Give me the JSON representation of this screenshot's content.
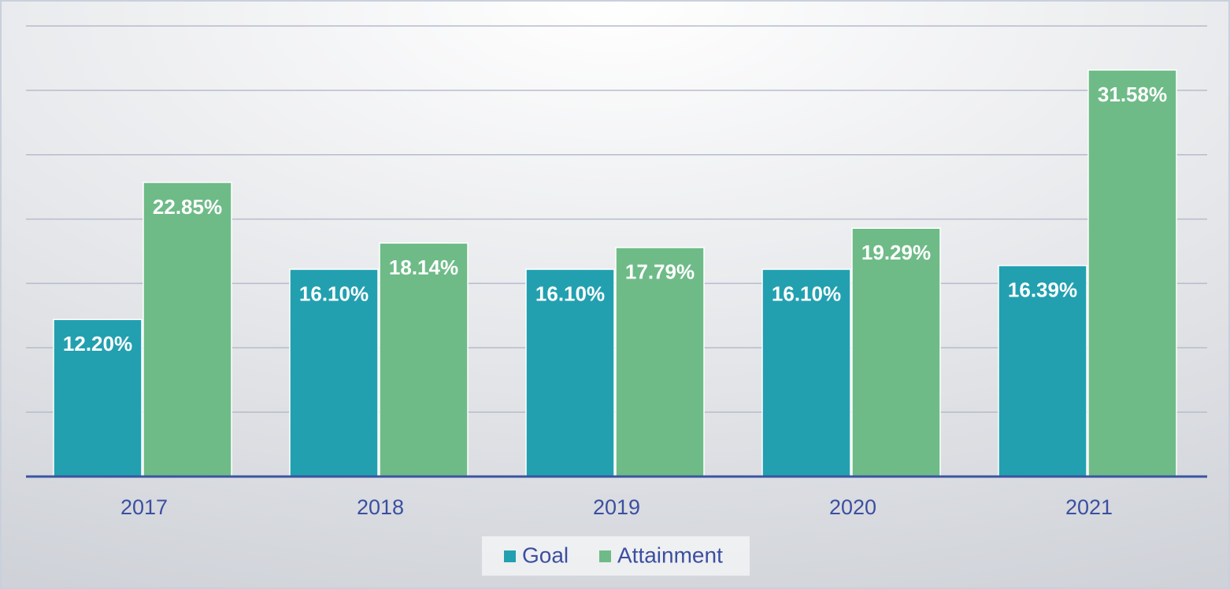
{
  "chart_data": {
    "type": "bar",
    "categories": [
      "2017",
      "2018",
      "2019",
      "2020",
      "2021"
    ],
    "series": [
      {
        "name": "Goal",
        "color": "#22a0b0",
        "values": [
          12.2,
          16.1,
          16.1,
          16.1,
          16.39
        ],
        "value_labels": [
          "12.20%",
          "16.10%",
          "16.10%",
          "16.10%",
          "16.39%"
        ]
      },
      {
        "name": "Attainment",
        "color": "#6ebb87",
        "values": [
          22.85,
          18.14,
          17.79,
          19.29,
          31.58
        ],
        "value_labels": [
          "22.85%",
          "18.14%",
          "17.79%",
          "19.29%",
          "31.58%"
        ]
      }
    ],
    "ylim": [
      0,
      35
    ],
    "yticks": [
      0,
      5,
      10,
      15,
      20,
      25,
      30,
      35
    ],
    "grid": true,
    "legend": "bottom"
  }
}
